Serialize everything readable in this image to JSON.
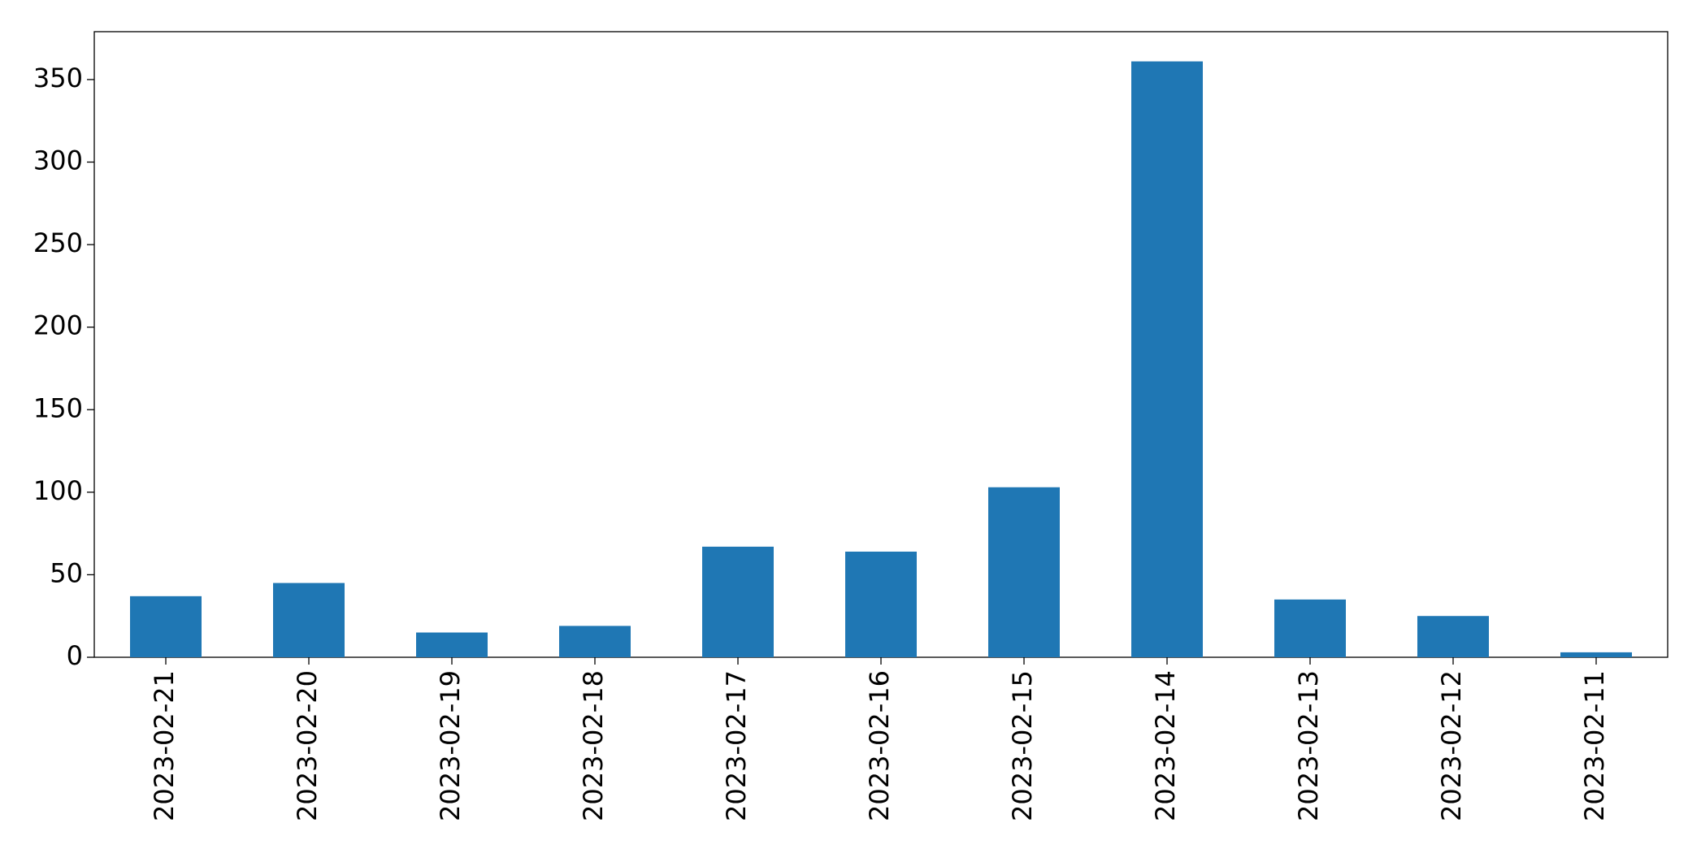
{
  "chart_data": {
    "type": "bar",
    "categories": [
      "2023-02-21",
      "2023-02-20",
      "2023-02-19",
      "2023-02-18",
      "2023-02-17",
      "2023-02-16",
      "2023-02-15",
      "2023-02-14",
      "2023-02-13",
      "2023-02-12",
      "2023-02-11"
    ],
    "values": [
      37,
      45,
      15,
      19,
      67,
      64,
      103,
      361,
      35,
      25,
      3
    ],
    "color": "#1f77b4",
    "ylim": [
      0,
      379
    ],
    "yticks": [
      0,
      50,
      100,
      150,
      200,
      250,
      300,
      350
    ],
    "grid": false
  }
}
